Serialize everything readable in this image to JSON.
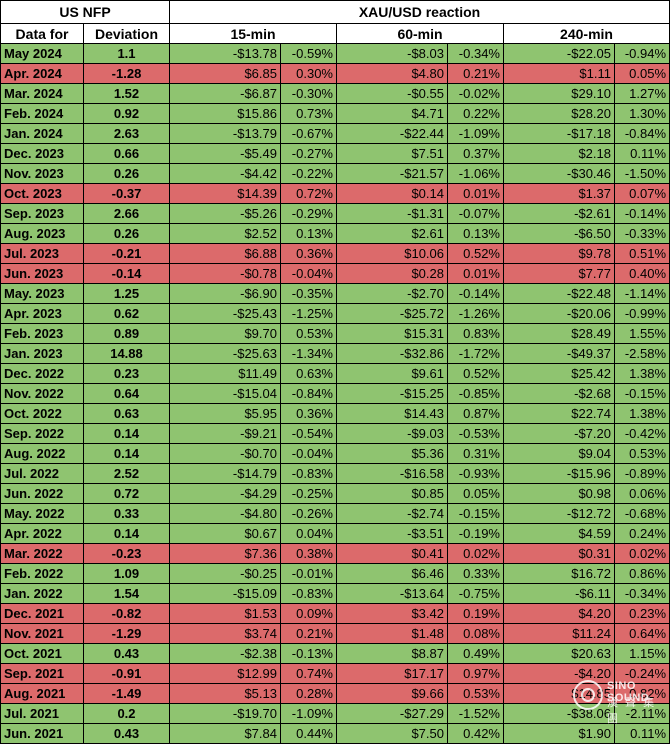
{
  "header": {
    "left_title": "US NFP",
    "right_title": "XAU/USD reaction",
    "col_date": "Data for",
    "col_deviation": "Deviation",
    "col_15": "15-min",
    "col_60": "60-min",
    "col_240": "240-min"
  },
  "colors": {
    "positive": "#8fc470",
    "negative": "#dc6a6b"
  },
  "rows": [
    {
      "date": "May 2024",
      "dev": "1.1",
      "d15": "-$13.78",
      "p15": "-0.59%",
      "d60": "-$8.03",
      "p60": "-0.34%",
      "d240": "-$22.05",
      "p240": "-0.94%",
      "tone": "pos"
    },
    {
      "date": "Apr. 2024",
      "dev": "-1.28",
      "d15": "$6.85",
      "p15": "0.30%",
      "d60": "$4.80",
      "p60": "0.21%",
      "d240": "$1.11",
      "p240": "0.05%",
      "tone": "neg"
    },
    {
      "date": "Mar. 2024",
      "dev": "1.52",
      "d15": "-$6.87",
      "p15": "-0.30%",
      "d60": "-$0.55",
      "p60": "-0.02%",
      "d240": "$29.10",
      "p240": "1.27%",
      "tone": "pos"
    },
    {
      "date": "Feb. 2024",
      "dev": "0.92",
      "d15": "$15.86",
      "p15": "0.73%",
      "d60": "$4.71",
      "p60": "0.22%",
      "d240": "$28.20",
      "p240": "1.30%",
      "tone": "pos"
    },
    {
      "date": "Jan. 2024",
      "dev": "2.63",
      "d15": "-$13.79",
      "p15": "-0.67%",
      "d60": "-$22.44",
      "p60": "-1.09%",
      "d240": "-$17.18",
      "p240": "-0.84%",
      "tone": "pos"
    },
    {
      "date": "Dec. 2023",
      "dev": "0.66",
      "d15": "-$5.49",
      "p15": "-0.27%",
      "d60": "$7.51",
      "p60": "0.37%",
      "d240": "$2.18",
      "p240": "0.11%",
      "tone": "pos"
    },
    {
      "date": "Nov. 2023",
      "dev": "0.26",
      "d15": "-$4.42",
      "p15": "-0.22%",
      "d60": "-$21.57",
      "p60": "-1.06%",
      "d240": "-$30.46",
      "p240": "-1.50%",
      "tone": "pos"
    },
    {
      "date": "Oct. 2023",
      "dev": "-0.37",
      "d15": "$14.39",
      "p15": "0.72%",
      "d60": "$0.14",
      "p60": "0.01%",
      "d240": "$1.37",
      "p240": "0.07%",
      "tone": "neg"
    },
    {
      "date": "Sep. 2023",
      "dev": "2.66",
      "d15": "-$5.26",
      "p15": "-0.29%",
      "d60": "-$1.31",
      "p60": "-0.07%",
      "d240": "-$2.61",
      "p240": "-0.14%",
      "tone": "pos"
    },
    {
      "date": "Aug. 2023",
      "dev": "0.26",
      "d15": "$2.52",
      "p15": "0.13%",
      "d60": "$2.61",
      "p60": "0.13%",
      "d240": "-$6.50",
      "p240": "-0.33%",
      "tone": "pos"
    },
    {
      "date": "Jul. 2023",
      "dev": "-0.21",
      "d15": "$6.88",
      "p15": "0.36%",
      "d60": "$10.06",
      "p60": "0.52%",
      "d240": "$9.78",
      "p240": "0.51%",
      "tone": "neg"
    },
    {
      "date": "Jun. 2023",
      "dev": "-0.14",
      "d15": "-$0.78",
      "p15": "-0.04%",
      "d60": "$0.28",
      "p60": "0.01%",
      "d240": "$7.77",
      "p240": "0.40%",
      "tone": "neg"
    },
    {
      "date": "May. 2023",
      "dev": "1.25",
      "d15": "-$6.90",
      "p15": "-0.35%",
      "d60": "-$2.70",
      "p60": "-0.14%",
      "d240": "-$22.48",
      "p240": "-1.14%",
      "tone": "pos"
    },
    {
      "date": "Apr. 2023",
      "dev": "0.62",
      "d15": "-$25.43",
      "p15": "-1.25%",
      "d60": "-$25.72",
      "p60": "-1.26%",
      "d240": "-$20.06",
      "p240": "-0.99%",
      "tone": "pos"
    },
    {
      "date": "Feb. 2023",
      "dev": "0.89",
      "d15": "$9.70",
      "p15": "0.53%",
      "d60": "$15.31",
      "p60": "0.83%",
      "d240": "$28.49",
      "p240": "1.55%",
      "tone": "pos"
    },
    {
      "date": "Jan. 2023",
      "dev": "14.88",
      "d15": "-$25.63",
      "p15": "-1.34%",
      "d60": "-$32.86",
      "p60": "-1.72%",
      "d240": "-$49.37",
      "p240": "-2.58%",
      "tone": "pos"
    },
    {
      "date": "Dec. 2022",
      "dev": "0.23",
      "d15": "$11.49",
      "p15": "0.63%",
      "d60": "$9.61",
      "p60": "0.52%",
      "d240": "$25.42",
      "p240": "1.38%",
      "tone": "pos"
    },
    {
      "date": "Nov. 2022",
      "dev": "0.64",
      "d15": "-$15.04",
      "p15": "-0.84%",
      "d60": "-$15.25",
      "p60": "-0.85%",
      "d240": "-$2.68",
      "p240": "-0.15%",
      "tone": "pos"
    },
    {
      "date": "Oct. 2022",
      "dev": "0.63",
      "d15": "$5.95",
      "p15": "0.36%",
      "d60": "$14.43",
      "p60": "0.87%",
      "d240": "$22.74",
      "p240": "1.38%",
      "tone": "pos"
    },
    {
      "date": "Sep. 2022",
      "dev": "0.14",
      "d15": "-$9.21",
      "p15": "-0.54%",
      "d60": "-$9.03",
      "p60": "-0.53%",
      "d240": "-$7.20",
      "p240": "-0.42%",
      "tone": "pos"
    },
    {
      "date": "Aug. 2022",
      "dev": "0.14",
      "d15": "-$0.70",
      "p15": "-0.04%",
      "d60": "$5.36",
      "p60": "0.31%",
      "d240": "$9.04",
      "p240": "0.53%",
      "tone": "pos"
    },
    {
      "date": "Jul. 2022",
      "dev": "2.52",
      "d15": "-$14.79",
      "p15": "-0.83%",
      "d60": "-$16.58",
      "p60": "-0.93%",
      "d240": "-$15.96",
      "p240": "-0.89%",
      "tone": "pos"
    },
    {
      "date": "Jun. 2022",
      "dev": "0.72",
      "d15": "-$4.29",
      "p15": "-0.25%",
      "d60": "$0.85",
      "p60": "0.05%",
      "d240": "$0.98",
      "p240": "0.06%",
      "tone": "pos"
    },
    {
      "date": "May. 2022",
      "dev": "0.33",
      "d15": "-$4.80",
      "p15": "-0.26%",
      "d60": "-$2.74",
      "p60": "-0.15%",
      "d240": "-$12.72",
      "p240": "-0.68%",
      "tone": "pos"
    },
    {
      "date": "Apr. 2022",
      "dev": "0.14",
      "d15": "$0.67",
      "p15": "0.04%",
      "d60": "-$3.51",
      "p60": "-0.19%",
      "d240": "$4.59",
      "p240": "0.24%",
      "tone": "pos"
    },
    {
      "date": "Mar. 2022",
      "dev": "-0.23",
      "d15": "$7.36",
      "p15": "0.38%",
      "d60": "$0.41",
      "p60": "0.02%",
      "d240": "$0.31",
      "p240": "0.02%",
      "tone": "neg"
    },
    {
      "date": "Feb. 2022",
      "dev": "1.09",
      "d15": "-$0.25",
      "p15": "-0.01%",
      "d60": "$6.46",
      "p60": "0.33%",
      "d240": "$16.72",
      "p240": "0.86%",
      "tone": "pos"
    },
    {
      "date": "Jan. 2022",
      "dev": "1.54",
      "d15": "-$15.09",
      "p15": "-0.83%",
      "d60": "-$13.64",
      "p60": "-0.75%",
      "d240": "-$6.11",
      "p240": "-0.34%",
      "tone": "pos"
    },
    {
      "date": "Dec. 2021",
      "dev": "-0.82",
      "d15": "$1.53",
      "p15": "0.09%",
      "d60": "$3.42",
      "p60": "0.19%",
      "d240": "$4.20",
      "p240": "0.23%",
      "tone": "neg"
    },
    {
      "date": "Nov. 2021",
      "dev": "-1.29",
      "d15": "$3.74",
      "p15": "0.21%",
      "d60": "$1.48",
      "p60": "0.08%",
      "d240": "$11.24",
      "p240": "0.64%",
      "tone": "neg"
    },
    {
      "date": "Oct. 2021",
      "dev": "0.43",
      "d15": "-$2.38",
      "p15": "-0.13%",
      "d60": "$8.87",
      "p60": "0.49%",
      "d240": "$20.63",
      "p240": "1.15%",
      "tone": "pos"
    },
    {
      "date": "Sep. 2021",
      "dev": "-0.91",
      "d15": "$12.99",
      "p15": "0.74%",
      "d60": "$17.17",
      "p60": "0.97%",
      "d240": "-$4.20",
      "p240": "-0.24%",
      "tone": "neg"
    },
    {
      "date": "Aug. 2021",
      "dev": "-1.49",
      "d15": "$5.13",
      "p15": "0.28%",
      "d60": "$9.66",
      "p60": "0.53%",
      "d240": "$14.85",
      "p240": "0.82%",
      "tone": "neg"
    },
    {
      "date": "Jul. 2021",
      "dev": "0.2",
      "d15": "-$19.70",
      "p15": "-1.09%",
      "d60": "-$27.29",
      "p60": "-1.52%",
      "d240": "-$38.06",
      "p240": "-2.11%",
      "tone": "pos"
    },
    {
      "date": "Jun. 2021",
      "dev": "0.43",
      "d15": "$7.84",
      "p15": "0.44%",
      "d60": "$7.50",
      "p60": "0.42%",
      "d240": "$1.90",
      "p240": "0.11%",
      "tone": "pos"
    }
  ],
  "watermark": {
    "line1": "SINO SOUND",
    "line2": "漢 聲 集 團"
  }
}
